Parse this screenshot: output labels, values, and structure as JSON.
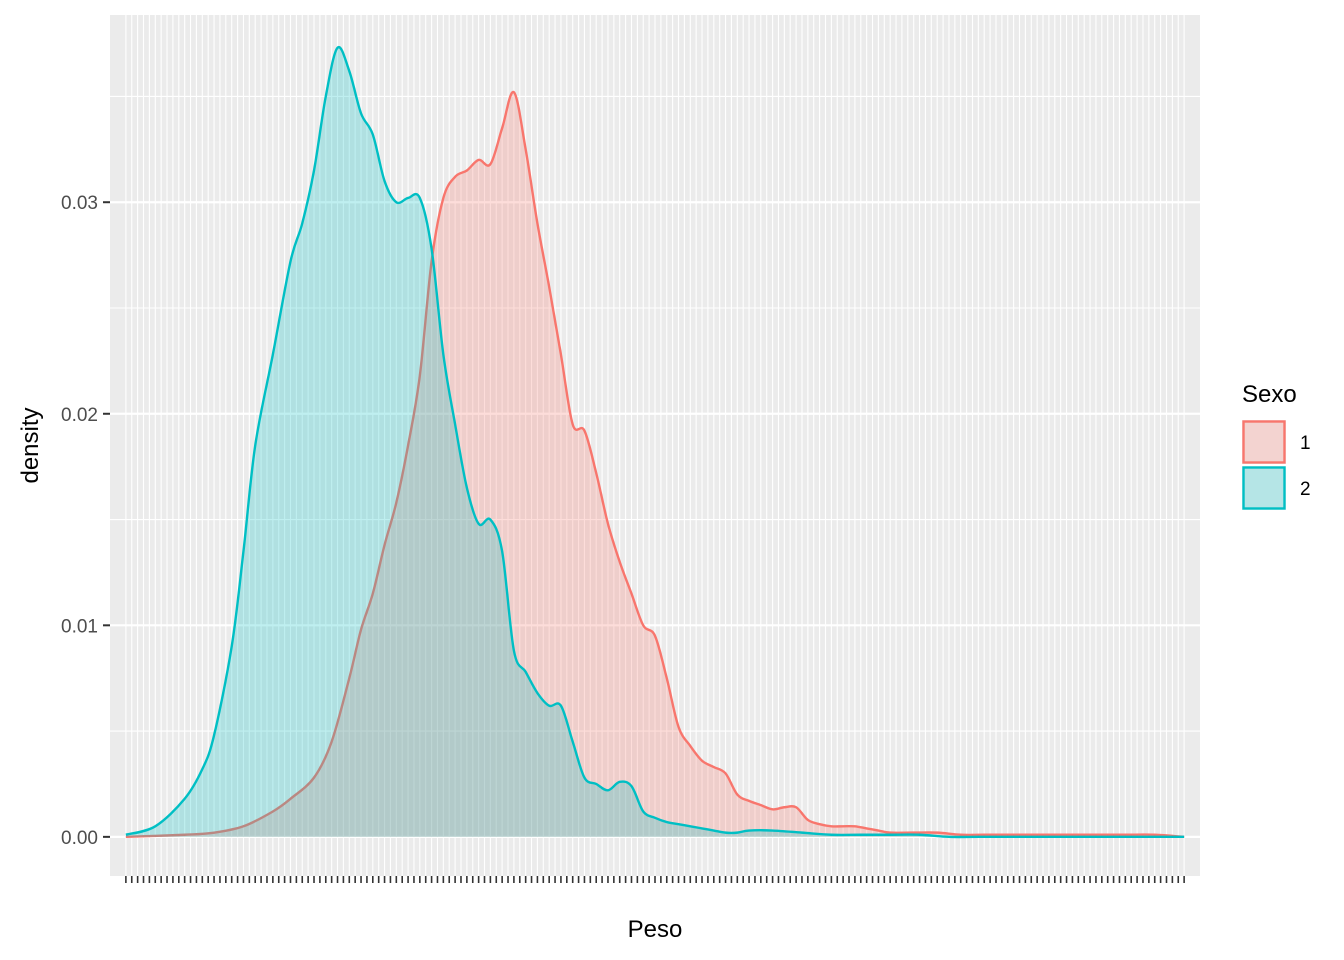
{
  "chart_data": {
    "type": "area",
    "title": "",
    "xlabel": "Peso",
    "ylabel": "density",
    "xlim": [
      0,
      180
    ],
    "ylim": [
      0,
      0.037
    ],
    "y_ticks": [
      "0.00",
      "0.01",
      "0.02",
      "0.03"
    ],
    "y_tick_values": [
      0,
      0.01,
      0.02,
      0.03
    ],
    "grid": true,
    "x_ticks_overplotted": true,
    "legend": {
      "title": "Sexo",
      "position": "right",
      "entries": [
        "1",
        "2"
      ]
    },
    "series": [
      {
        "name": "1",
        "line_color": "#F8766D",
        "fill_color": "#F8766D",
        "fill_opacity": 0.25,
        "x": [
          0,
          10,
          15,
          20,
          25,
          28,
          32,
          35,
          38,
          40,
          42,
          44,
          46,
          48,
          50,
          52,
          54,
          56,
          58,
          60,
          62,
          64,
          66,
          68,
          70,
          72,
          74,
          76,
          78,
          80,
          82,
          84,
          86,
          88,
          90,
          92,
          94,
          96,
          98,
          100,
          102,
          104,
          106,
          108,
          110,
          112,
          114,
          116,
          118,
          120,
          122,
          124,
          126,
          128,
          130,
          134,
          138,
          142,
          146,
          150,
          155,
          160,
          165,
          170,
          175,
          180
        ],
        "y": [
          0.0,
          0.0001,
          0.0002,
          0.0005,
          0.0012,
          0.0018,
          0.0028,
          0.0045,
          0.0075,
          0.0098,
          0.0115,
          0.0138,
          0.0158,
          0.0185,
          0.0218,
          0.0272,
          0.0302,
          0.0312,
          0.0315,
          0.032,
          0.0318,
          0.0335,
          0.0352,
          0.0325,
          0.029,
          0.026,
          0.0228,
          0.0195,
          0.0192,
          0.0172,
          0.0148,
          0.013,
          0.0115,
          0.01,
          0.0095,
          0.0075,
          0.0052,
          0.0043,
          0.0036,
          0.0033,
          0.003,
          0.002,
          0.0017,
          0.0015,
          0.0013,
          0.0014,
          0.0014,
          0.0008,
          0.0006,
          0.0005,
          0.0005,
          0.0005,
          0.0004,
          0.0003,
          0.0002,
          0.0002,
          0.0002,
          0.0001,
          0.0001,
          0.0001,
          0.0001,
          0.0001,
          0.0001,
          0.0001,
          0.0001,
          0.0
        ]
      },
      {
        "name": "2",
        "line_color": "#00BFC4",
        "fill_color": "#00BFC4",
        "fill_opacity": 0.25,
        "x": [
          0,
          5,
          10,
          13,
          15,
          18,
          20,
          22,
          25,
          28,
          30,
          32,
          34,
          36,
          38,
          40,
          42,
          44,
          46,
          48,
          50,
          52,
          54,
          56,
          58,
          60,
          62,
          64,
          66,
          68,
          70,
          72,
          74,
          76,
          78,
          80,
          82,
          84,
          86,
          88,
          90,
          92,
          94,
          96,
          98,
          100,
          102,
          104,
          106,
          110,
          115,
          120,
          125,
          130,
          135,
          140,
          145,
          150,
          155,
          160,
          165,
          170,
          175,
          180
        ],
        "y": [
          0.0001,
          0.0005,
          0.0018,
          0.0032,
          0.0048,
          0.009,
          0.0135,
          0.0185,
          0.0228,
          0.0272,
          0.029,
          0.0315,
          0.035,
          0.0373,
          0.0362,
          0.0342,
          0.0332,
          0.031,
          0.03,
          0.0302,
          0.0302,
          0.0278,
          0.0228,
          0.0195,
          0.0165,
          0.0148,
          0.015,
          0.0135,
          0.0088,
          0.0078,
          0.0068,
          0.0062,
          0.0062,
          0.0045,
          0.0028,
          0.0025,
          0.0022,
          0.0026,
          0.0024,
          0.0012,
          0.0009,
          0.0007,
          0.0006,
          0.0005,
          0.0004,
          0.0003,
          0.0002,
          0.0002,
          0.0003,
          0.0003,
          0.0002,
          0.0001,
          0.0001,
          0.0001,
          0.0001,
          0.0,
          0.0,
          0.0,
          0.0,
          0.0,
          0.0,
          0.0,
          0.0,
          0.0
        ]
      }
    ]
  }
}
